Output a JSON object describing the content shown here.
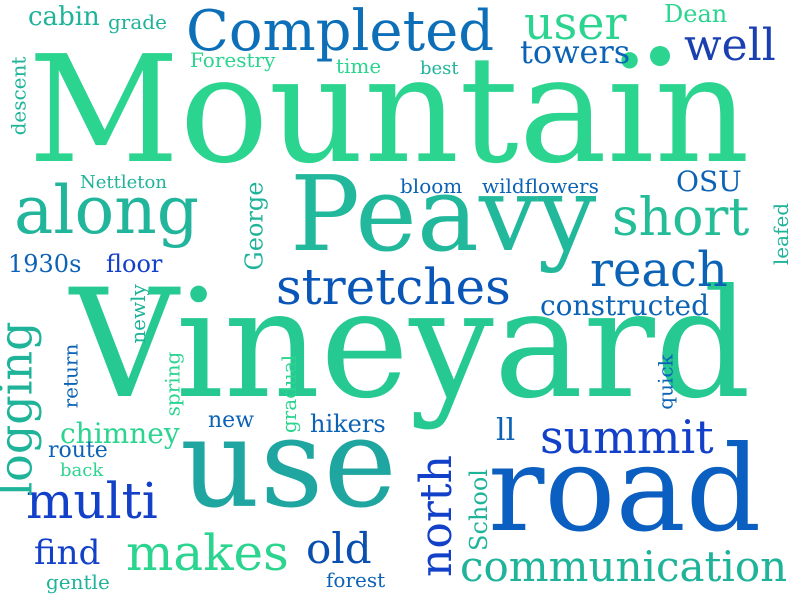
{
  "words": {
    "mountain": "Mountain",
    "vineyard": "Vineyard",
    "peavy": "Peavy",
    "use": "use",
    "road": "road",
    "along": "along",
    "completed": "Completed",
    "stretches": "stretches",
    "logging": "logging",
    "multi": "multi",
    "summit": "summit",
    "reach": "reach",
    "short": "short",
    "makes": "makes",
    "communication": "communication",
    "north": "north",
    "user": "user",
    "well": "well",
    "towers": "towers",
    "old": "old",
    "find": "find",
    "constructed": "constructed",
    "cabin": "cabin",
    "grade": "grade",
    "dean": "Dean",
    "forestry": "Forestry",
    "time": "time",
    "best": "best",
    "descent": "descent",
    "nettleton": "Nettleton",
    "george": "George",
    "bloom": "bloom",
    "wildflowers": "wildflowers",
    "osu": "OSU",
    "leafed": "leafed",
    "y1930s": "1930s",
    "floor": "floor",
    "newly": "newly",
    "spring": "spring",
    "gradual": "gradual",
    "quick": "quick",
    "return": "return",
    "chimney": "chimney",
    "new": "new",
    "hikers": "hikers",
    "ll": "ll",
    "route": "route",
    "back": "back",
    "school": "School",
    "gentle": "gentle",
    "forest": "forest"
  },
  "colors": {
    "green": "#2bd48f",
    "teal": "#1fb39a",
    "blue": "#0a5fc0",
    "navy": "#1a3fb0"
  }
}
